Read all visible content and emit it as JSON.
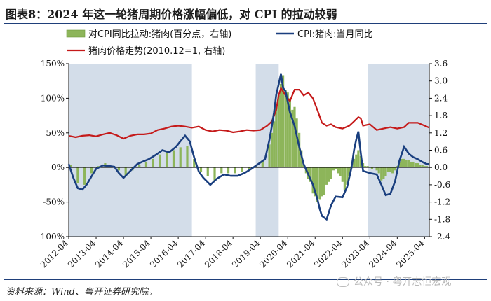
{
  "title": "图表8：2024 年这一轮猪周期价格涨幅偏低，对 CPI 的拉动较弱",
  "source": "资料来源：Wind、粤开证券研究院。",
  "watermark": "公众号 · 粤开志恒宏观",
  "chart_data": {
    "type": "combo",
    "legend": {
      "bar": "对CPI同比拉动:猪肉(百分点，右轴)",
      "cpi": "CPI:猪肉:当月同比",
      "price": "猪肉价格走势(2010.12=1, 右轴)"
    },
    "colors": {
      "bar": "#8db55a",
      "cpi": "#1a3f7f",
      "price": "#c51a1a",
      "shade": "#d3dde9"
    },
    "left_axis": {
      "ylim": [
        -100,
        150
      ],
      "ticks": [
        -100,
        -50,
        0,
        50,
        100,
        150
      ],
      "tick_labels": [
        "-100%",
        "-50%",
        "0%",
        "50%",
        "100%",
        "150%"
      ]
    },
    "right_axis": {
      "ylim": [
        -2.4,
        3.6
      ],
      "ticks": [
        -2.4,
        -1.8,
        -1.2,
        -0.6,
        0.0,
        0.6,
        1.2,
        1.8,
        2.4,
        3.0,
        3.6
      ],
      "tick_labels": [
        "-2.4",
        "-1.8",
        "-1.2",
        "-0.6",
        "0.0",
        "0.6",
        "1.2",
        "1.8",
        "2.4",
        "3.0",
        "3.6"
      ]
    },
    "x_range": [
      2012.25,
      2025.42
    ],
    "x_ticks": [
      2012.25,
      2013.25,
      2014.25,
      2015.25,
      2016.25,
      2017.25,
      2018.25,
      2019.25,
      2020.25,
      2021.25,
      2022.25,
      2023.25,
      2024.25,
      2025.25
    ],
    "x_tick_labels": [
      "2012-04",
      "2013-04",
      "2014-04",
      "2015-04",
      "2016-04",
      "2017-04",
      "2018-04",
      "2019-04",
      "2020-04",
      "2021-04",
      "2022-04",
      "2023-04",
      "2024-04",
      "2025-04"
    ],
    "shaded_periods": [
      [
        2012.25,
        2016.75
      ],
      [
        2019.08,
        2019.92
      ],
      [
        2023.17,
        2025.42
      ]
    ],
    "cpi_pork_yoy": {
      "x": [
        2012.25,
        2012.42,
        2012.58,
        2012.75,
        2012.92,
        2013.08,
        2013.25,
        2013.5,
        2013.75,
        2013.92,
        2014.08,
        2014.25,
        2014.5,
        2014.75,
        2014.92,
        2015.17,
        2015.42,
        2015.67,
        2015.92,
        2016.17,
        2016.33,
        2016.5,
        2016.67,
        2016.83,
        2017.0,
        2017.17,
        2017.42,
        2017.67,
        2017.92,
        2018.17,
        2018.42,
        2018.67,
        2018.92,
        2019.17,
        2019.42,
        2019.58,
        2019.67,
        2019.75,
        2019.83,
        2019.92,
        2020.0,
        2020.08,
        2020.17,
        2020.33,
        2020.5,
        2020.67,
        2020.83,
        2021.0,
        2021.17,
        2021.33,
        2021.42,
        2021.5,
        2021.67,
        2021.83,
        2022.0,
        2022.25,
        2022.42,
        2022.58,
        2022.67,
        2022.75,
        2022.83,
        2022.92,
        2023.0,
        2023.25,
        2023.5,
        2023.67,
        2023.83,
        2024.0,
        2024.17,
        2024.33,
        2024.5,
        2024.67,
        2024.83,
        2025.0,
        2025.17,
        2025.33,
        2025.42
      ],
      "values": [
        5,
        -15,
        -30,
        -32,
        -24,
        -13,
        -2,
        3,
        2,
        1,
        -8,
        -15,
        -5,
        5,
        8,
        12,
        18,
        25,
        22,
        30,
        38,
        46,
        38,
        15,
        -6,
        -15,
        -25,
        -16,
        -10,
        -12,
        -12,
        -8,
        -2,
        5,
        12,
        40,
        60,
        80,
        105,
        120,
        135,
        115,
        110,
        80,
        60,
        30,
        5,
        -10,
        -25,
        -45,
        -60,
        -70,
        -75,
        -55,
        -42,
        -43,
        -28,
        0,
        25,
        40,
        52,
        20,
        -5,
        -8,
        -10,
        -25,
        -40,
        -38,
        -20,
        10,
        30,
        20,
        15,
        12,
        8,
        5,
        5
      ]
    },
    "pork_price_index": {
      "x": [
        2012.25,
        2012.5,
        2012.75,
        2013.0,
        2013.25,
        2013.5,
        2013.75,
        2014.0,
        2014.25,
        2014.5,
        2014.75,
        2015.0,
        2015.25,
        2015.5,
        2015.75,
        2016.0,
        2016.25,
        2016.5,
        2016.75,
        2017.0,
        2017.25,
        2017.5,
        2017.75,
        2018.0,
        2018.25,
        2018.5,
        2018.75,
        2019.0,
        2019.25,
        2019.5,
        2019.67,
        2019.83,
        2019.92,
        2020.0,
        2020.17,
        2020.33,
        2020.5,
        2020.67,
        2020.83,
        2021.0,
        2021.17,
        2021.33,
        2021.5,
        2021.67,
        2021.83,
        2022.0,
        2022.25,
        2022.5,
        2022.67,
        2022.83,
        2022.92,
        2023.0,
        2023.25,
        2023.5,
        2023.75,
        2024.0,
        2024.25,
        2024.5,
        2024.67,
        2024.83,
        2025.0,
        2025.25,
        2025.42
      ],
      "values": [
        1.1,
        1.05,
        1.1,
        1.12,
        1.08,
        1.15,
        1.2,
        1.12,
        1.0,
        1.1,
        1.15,
        1.15,
        1.18,
        1.3,
        1.35,
        1.42,
        1.45,
        1.42,
        1.38,
        1.42,
        1.3,
        1.25,
        1.3,
        1.28,
        1.22,
        1.25,
        1.3,
        1.28,
        1.3,
        1.45,
        1.6,
        2.0,
        2.5,
        2.75,
        2.5,
        2.3,
        2.7,
        2.7,
        2.5,
        2.6,
        2.4,
        2.0,
        1.55,
        1.45,
        1.5,
        1.4,
        1.35,
        1.45,
        1.6,
        1.75,
        1.7,
        1.45,
        1.5,
        1.3,
        1.35,
        1.4,
        1.35,
        1.4,
        1.55,
        1.55,
        1.55,
        1.45,
        1.38
      ]
    },
    "pork_cpi_pull": {
      "x": [
        2012.33,
        2012.58,
        2012.83,
        2013.08,
        2013.33,
        2013.58,
        2013.83,
        2014.08,
        2014.33,
        2014.58,
        2014.83,
        2015.08,
        2015.33,
        2015.58,
        2015.83,
        2016.08,
        2016.33,
        2016.58,
        2016.83,
        2017.08,
        2017.33,
        2017.58,
        2017.83,
        2018.08,
        2018.33,
        2018.58,
        2018.83,
        2019.08,
        2019.33,
        2019.58,
        2019.67,
        2019.75,
        2019.83,
        2019.92,
        2020.0,
        2020.08,
        2020.17,
        2020.25,
        2020.33,
        2020.42,
        2020.5,
        2020.58,
        2020.67,
        2020.75,
        2020.83,
        2020.92,
        2021.0,
        2021.08,
        2021.17,
        2021.25,
        2021.33,
        2021.42,
        2021.5,
        2021.58,
        2021.67,
        2021.75,
        2021.83,
        2021.92,
        2022.0,
        2022.08,
        2022.17,
        2022.25,
        2022.33,
        2022.42,
        2022.5,
        2022.58,
        2022.67,
        2022.75,
        2022.83,
        2022.92,
        2023.0,
        2023.08,
        2023.17,
        2023.33,
        2023.5,
        2023.58,
        2023.67,
        2023.75,
        2023.83,
        2023.92,
        2024.0,
        2024.08,
        2024.17,
        2024.25,
        2024.33,
        2024.42,
        2024.5,
        2024.58,
        2024.67,
        2024.75,
        2024.83,
        2024.92,
        2025.0,
        2025.08,
        2025.17,
        2025.25,
        2025.33
      ],
      "values": [
        0.1,
        -0.55,
        -0.6,
        -0.2,
        0.05,
        0.15,
        0.05,
        -0.1,
        -0.3,
        -0.1,
        0.1,
        0.2,
        0.3,
        0.45,
        0.55,
        0.6,
        0.7,
        0.75,
        0.3,
        -0.15,
        -0.3,
        -0.45,
        -0.2,
        -0.2,
        -0.2,
        -0.15,
        -0.05,
        0.05,
        0.25,
        0.8,
        1.2,
        1.6,
        2.1,
        2.5,
        2.9,
        3.2,
        2.7,
        2.6,
        2.4,
        2.0,
        2.1,
        1.7,
        1.2,
        0.6,
        0.1,
        -0.2,
        -0.4,
        -0.5,
        -0.9,
        -1.0,
        -1.2,
        -1.1,
        -1.0,
        -0.95,
        -0.6,
        -0.5,
        -0.4,
        -0.1,
        -0.05,
        -0.2,
        -0.3,
        -0.5,
        -0.8,
        -0.6,
        -0.3,
        0.05,
        0.3,
        0.45,
        0.6,
        0.4,
        0.15,
        0.05,
        0.05,
        -0.05,
        -0.1,
        -0.2,
        -0.45,
        -0.4,
        -0.3,
        -0.15,
        -0.15,
        -0.2,
        -0.1,
        0.05,
        0.2,
        0.3,
        0.3,
        0.25,
        0.25,
        0.2,
        0.2,
        0.15,
        0.15,
        0.1,
        0.1,
        0.05,
        0.05
      ]
    }
  }
}
